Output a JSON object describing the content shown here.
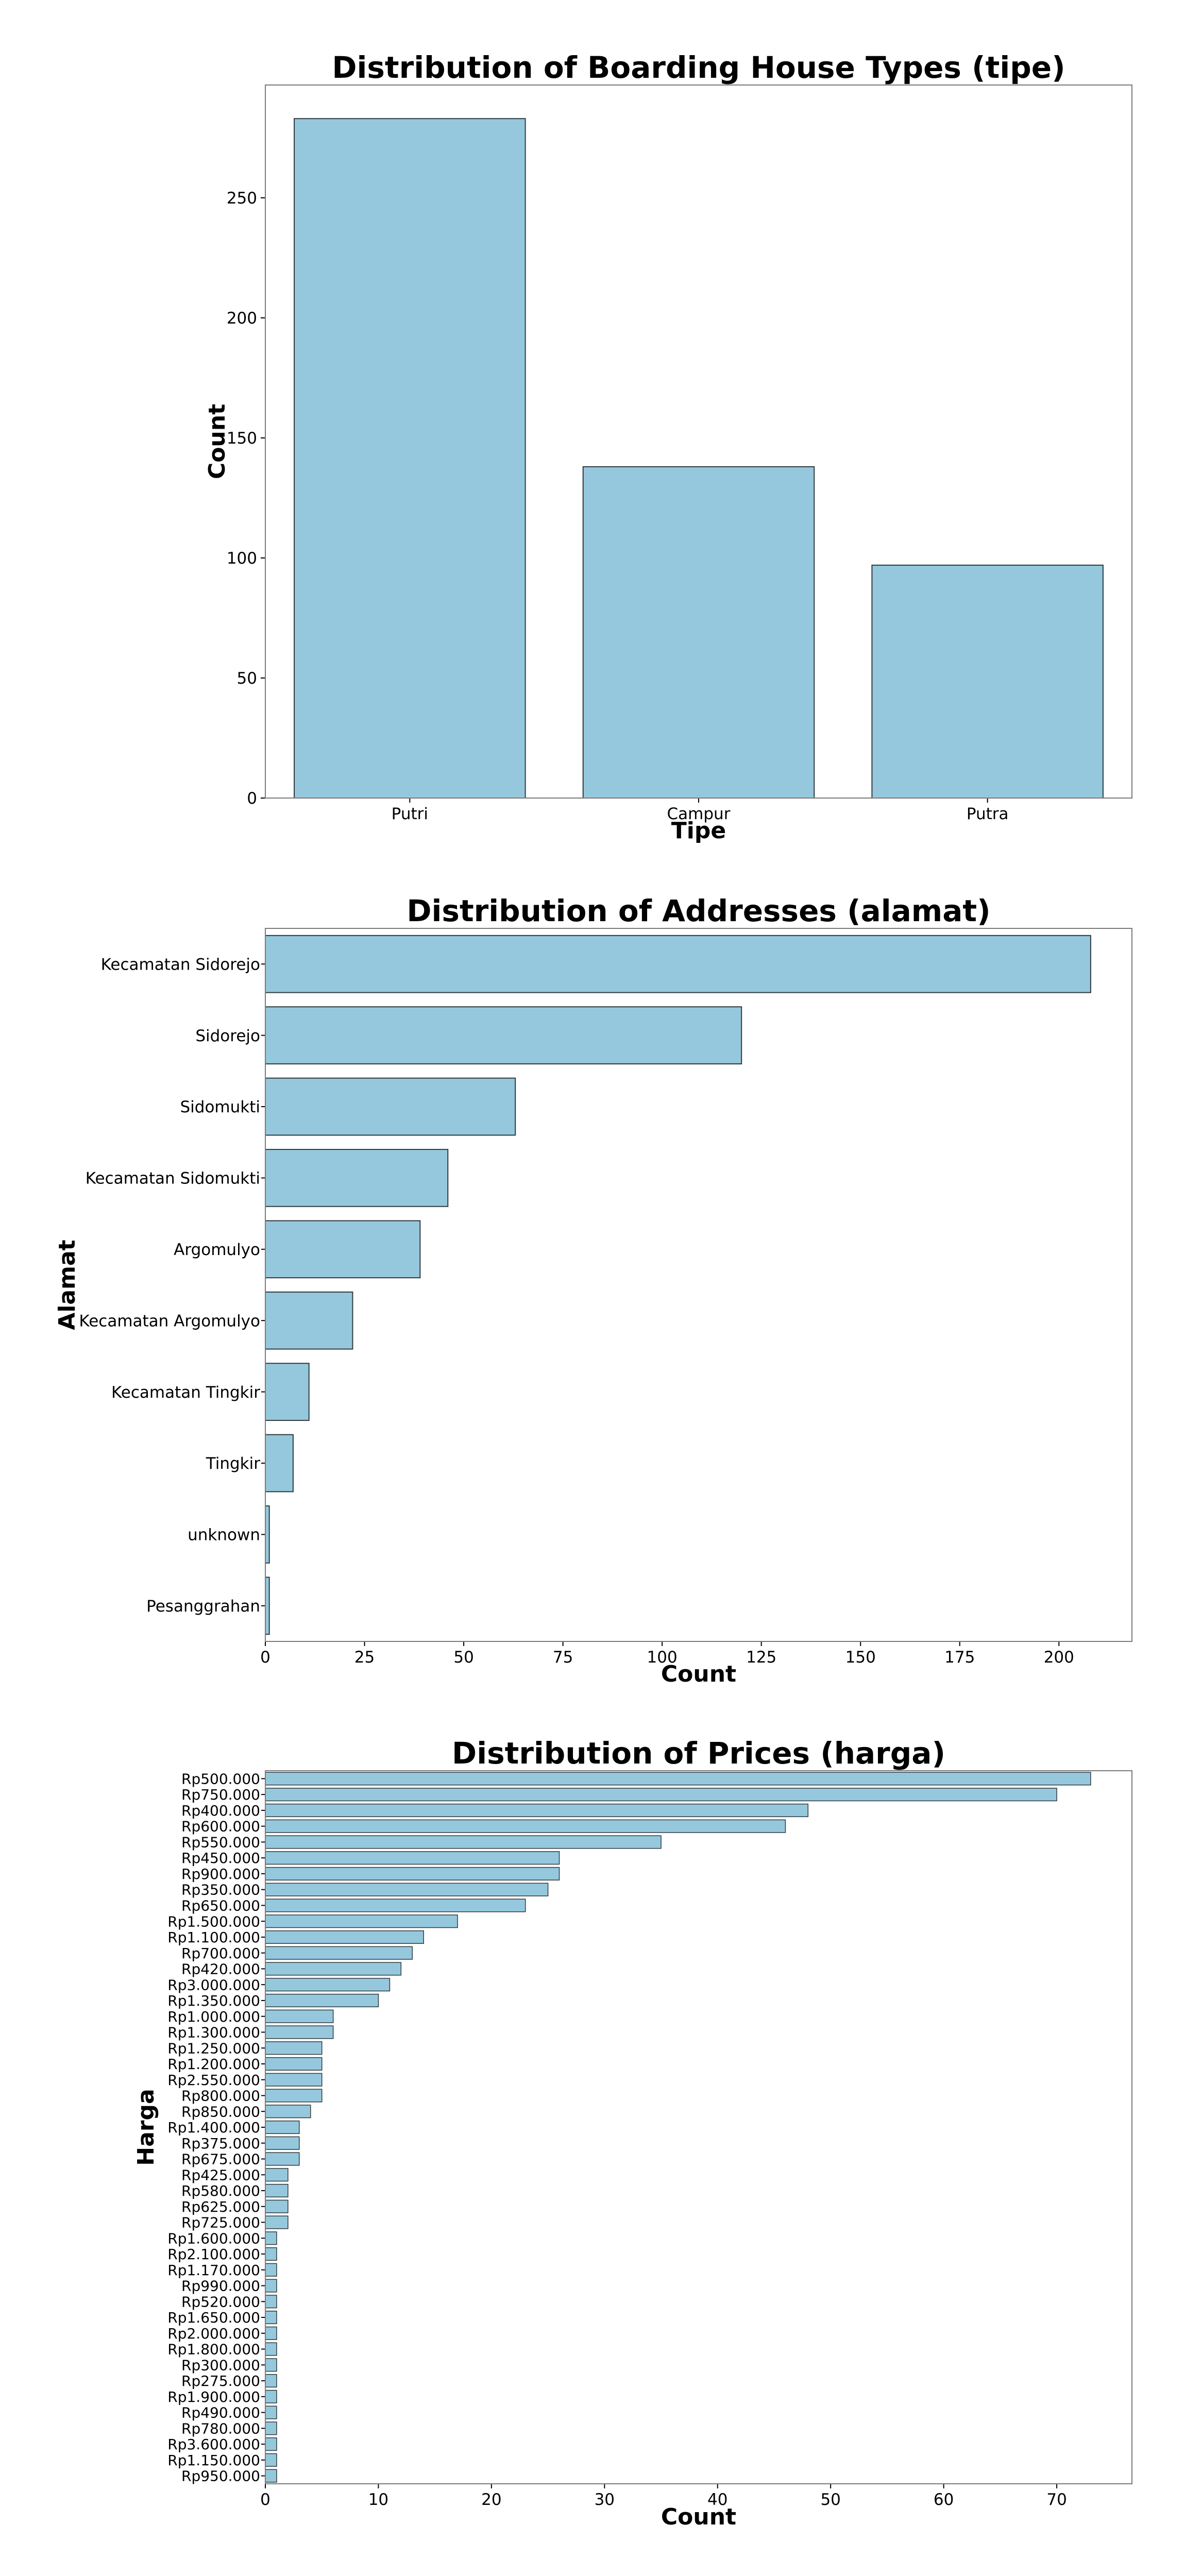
{
  "colors": {
    "bar": "#96c8dd",
    "edge": "#2f3a40",
    "frame": "#7a7a7a"
  },
  "chart_data": [
    {
      "type": "bar",
      "orientation": "vertical",
      "title": "Distribution of Boarding House Types (tipe)",
      "xlabel": "Tipe",
      "ylabel": "Count",
      "categories": [
        "Putri",
        "Campur",
        "Putra"
      ],
      "values": [
        283,
        138,
        97
      ],
      "ylim": [
        0,
        297
      ],
      "yticks": [
        0,
        50,
        100,
        150,
        200,
        250
      ],
      "grid": false
    },
    {
      "type": "bar",
      "orientation": "horizontal",
      "title": "Distribution of Addresses (alamat)",
      "xlabel": "Count",
      "ylabel": "Alamat",
      "categories": [
        "Kecamatan Sidorejo",
        "Sidorejo",
        "Sidomukti",
        "Kecamatan Sidomukti",
        "Argomulyo",
        "Kecamatan Argomulyo",
        "Kecamatan Tingkir",
        "Tingkir",
        "unknown",
        "Pesanggrahan"
      ],
      "values": [
        208,
        120,
        63,
        46,
        39,
        22,
        11,
        7,
        1,
        1
      ],
      "xlim": [
        0,
        218.4
      ],
      "xticks": [
        0,
        25,
        50,
        75,
        100,
        125,
        150,
        175,
        200
      ],
      "grid": false
    },
    {
      "type": "bar",
      "orientation": "horizontal",
      "title": "Distribution of Prices (harga)",
      "xlabel": "Count",
      "ylabel": "Harga",
      "categories": [
        "Rp500.000",
        "Rp750.000",
        "Rp400.000",
        "Rp600.000",
        "Rp550.000",
        "Rp450.000",
        "Rp900.000",
        "Rp350.000",
        "Rp650.000",
        "Rp1.500.000",
        "Rp1.100.000",
        "Rp700.000",
        "Rp420.000",
        "Rp3.000.000",
        "Rp1.350.000",
        "Rp1.000.000",
        "Rp1.300.000",
        "Rp1.250.000",
        "Rp1.200.000",
        "Rp2.550.000",
        "Rp800.000",
        "Rp850.000",
        "Rp1.400.000",
        "Rp375.000",
        "Rp675.000",
        "Rp425.000",
        "Rp580.000",
        "Rp625.000",
        "Rp725.000",
        "Rp1.600.000",
        "Rp2.100.000",
        "Rp1.170.000",
        "Rp990.000",
        "Rp520.000",
        "Rp1.650.000",
        "Rp2.000.000",
        "Rp1.800.000",
        "Rp300.000",
        "Rp275.000",
        "Rp1.900.000",
        "Rp490.000",
        "Rp780.000",
        "Rp3.600.000",
        "Rp1.150.000",
        "Rp950.000"
      ],
      "values": [
        73,
        70,
        48,
        46,
        35,
        26,
        26,
        25,
        23,
        17,
        14,
        13,
        12,
        11,
        10,
        6,
        6,
        5,
        5,
        5,
        5,
        4,
        3,
        3,
        3,
        2,
        2,
        2,
        2,
        1,
        1,
        1,
        1,
        1,
        1,
        1,
        1,
        1,
        1,
        1,
        1,
        1,
        1,
        1,
        1
      ],
      "xlim": [
        0,
        76.65
      ],
      "xticks": [
        0,
        10,
        20,
        30,
        40,
        50,
        60,
        70
      ],
      "grid": false
    }
  ]
}
